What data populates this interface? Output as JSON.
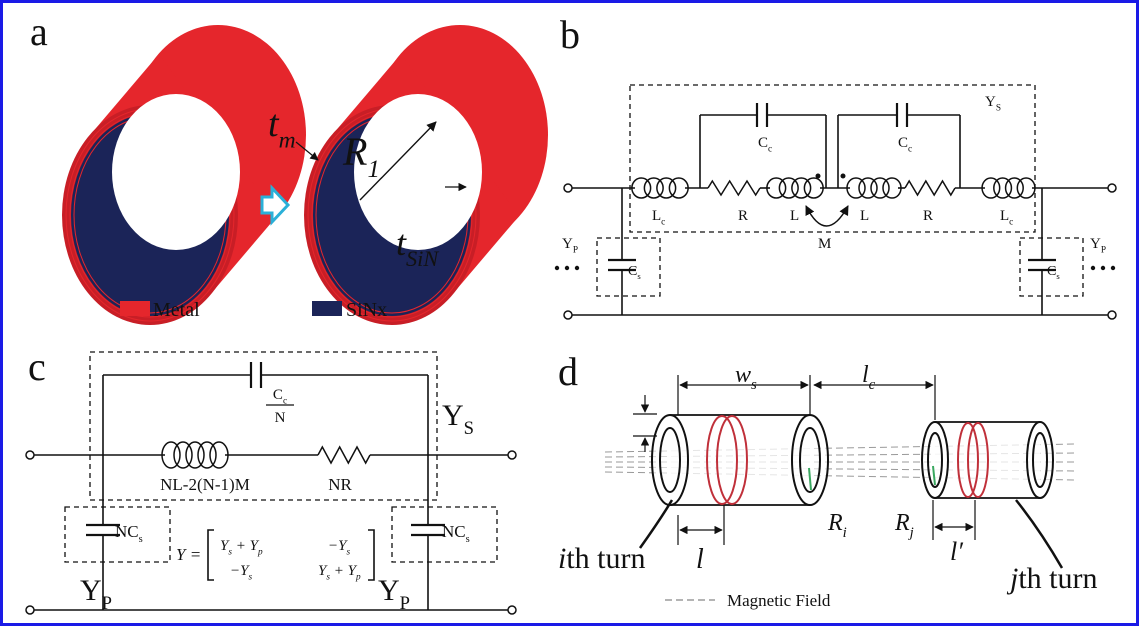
{
  "panels": [
    {
      "label": "a",
      "texts": [
        {
          "base": "t",
          "sub": "m"
        },
        {
          "base": "R",
          "sub": "1"
        },
        {
          "base": "t",
          "sub": "SiN"
        }
      ],
      "legend": [
        "Metal",
        "SiNx"
      ]
    },
    {
      "label": "b",
      "texts": [
        {
          "base": "Y",
          "sub": "S"
        },
        {
          "base": "C",
          "sub": "c"
        },
        {
          "base": "C",
          "sub": "c"
        },
        {
          "base": "L",
          "sub": "c"
        },
        "R",
        "L",
        "L",
        "R",
        {
          "base": "L",
          "sub": "c"
        },
        "M",
        {
          "base": "Y",
          "sub": "P"
        },
        {
          "base": "Y",
          "sub": "P"
        },
        {
          "base": "C",
          "sub": "s"
        },
        {
          "base": "C",
          "sub": "s"
        }
      ]
    },
    {
      "label": "c",
      "texts": [
        {
          "base": "C",
          "sub": "c"
        },
        "N",
        "NL-2(N-1)M",
        "NR",
        {
          "base": "Y",
          "sub": "S"
        },
        {
          "base": "NC",
          "sub": "s"
        },
        {
          "base": "NC",
          "sub": "s"
        },
        {
          "base": "Y",
          "sub": "P"
        },
        {
          "base": "Y",
          "sub": "P"
        }
      ],
      "equation": {
        "lhs": "Y =",
        "matrix": [
          [
            [
              {
                "base": "Y",
                "sub": "s"
              },
              " + ",
              {
                "base": "Y",
                "sub": "p"
              }
            ],
            [
              {
                "base": "−Y",
                "sub": "s"
              }
            ]
          ],
          [
            [
              {
                "base": "−Y",
                "sub": "s"
              }
            ],
            [
              {
                "base": "Y",
                "sub": "s"
              },
              " + ",
              {
                "base": "Y",
                "sub": "p"
              }
            ]
          ]
        ]
      }
    },
    {
      "label": "d",
      "texts": [
        {
          "base": "w",
          "sub": "s"
        },
        {
          "base": "l",
          "sub": "c"
        },
        {
          "base": "R",
          "sub": "i"
        },
        {
          "base": "R",
          "sub": "j"
        },
        "l",
        "l′",
        {
          "em": "i",
          "rest": "th turn"
        },
        {
          "em": "j",
          "rest": "th turn"
        },
        "Magnetic Field"
      ]
    }
  ]
}
